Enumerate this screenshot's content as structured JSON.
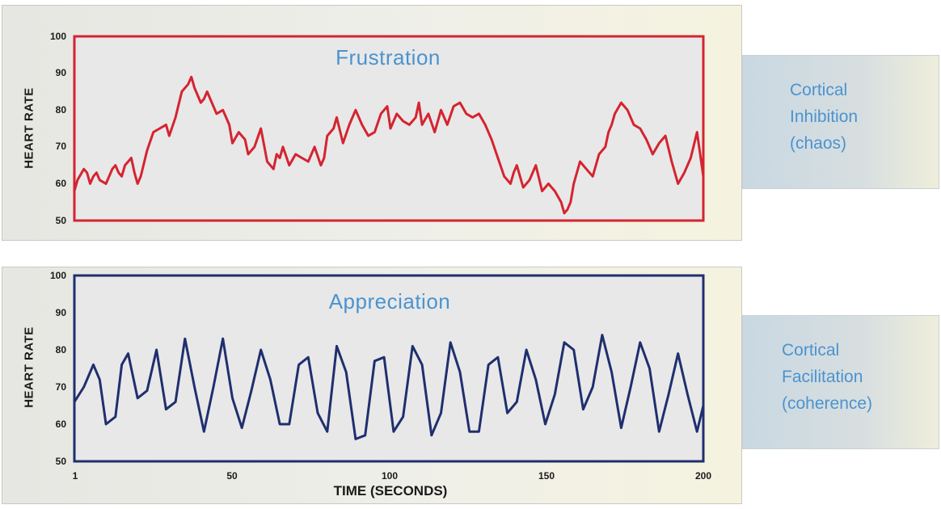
{
  "chart_data": [
    {
      "type": "line",
      "title": "Frustration",
      "ylabel": "HEART RATE",
      "xlabel": "",
      "ylim": [
        50,
        100
      ],
      "xlim": [
        1,
        200
      ],
      "yticks": [
        "100",
        "90",
        "80",
        "70",
        "60",
        "50"
      ],
      "color": "#d42430",
      "series": [
        {
          "x": [
            1,
            2,
            4,
            5,
            6,
            7,
            8,
            9,
            11,
            13,
            14,
            15,
            16,
            17,
            19,
            20,
            21,
            22,
            24,
            26,
            28,
            30,
            31,
            33,
            35,
            37,
            38,
            39,
            40,
            41,
            42,
            43,
            44,
            46,
            48,
            50,
            51,
            53,
            55,
            56,
            58,
            60,
            62,
            64,
            65,
            66,
            67,
            69,
            71,
            73,
            75,
            77,
            79,
            80,
            81,
            83,
            84,
            86,
            88,
            90,
            92,
            94,
            96,
            98,
            100,
            101,
            103,
            105,
            107,
            109,
            110,
            111,
            113,
            115,
            117,
            119,
            121,
            123,
            125,
            127,
            129,
            131,
            133,
            135,
            137,
            139,
            140,
            141,
            143,
            145,
            147,
            149,
            151,
            153,
            155,
            156,
            157,
            158,
            159,
            161,
            163,
            165,
            167,
            169,
            170,
            171,
            172,
            174,
            176,
            178,
            180,
            182,
            184,
            186,
            188,
            190,
            192,
            194,
            196,
            198,
            200
          ],
          "y": [
            58,
            61,
            64,
            63,
            60,
            62,
            63,
            61,
            60,
            64,
            65,
            63,
            62,
            65,
            67,
            63,
            60,
            62,
            69,
            74,
            75,
            76,
            73,
            78,
            85,
            87,
            89,
            86,
            84,
            82,
            83,
            85,
            83,
            79,
            80,
            76,
            71,
            74,
            72,
            68,
            70,
            75,
            66,
            64,
            68,
            67,
            70,
            65,
            68,
            67,
            66,
            70,
            65,
            67,
            73,
            75,
            78,
            71,
            76,
            80,
            76,
            73,
            74,
            79,
            81,
            75,
            79,
            77,
            76,
            78,
            82,
            76,
            79,
            74,
            80,
            76,
            81,
            82,
            79,
            78,
            79,
            76,
            72,
            67,
            62,
            60,
            63,
            65,
            59,
            61,
            65,
            58,
            60,
            58,
            55,
            52,
            53,
            55,
            60,
            66,
            64,
            62,
            68,
            70,
            74,
            76,
            79,
            82,
            80,
            76,
            75,
            72,
            68,
            71,
            73,
            66,
            60,
            63,
            67,
            74,
            62
          ]
        }
      ]
    },
    {
      "type": "line",
      "title": "Appreciation",
      "ylabel": "HEART RATE",
      "xlabel": "TIME (SECONDS)",
      "ylim": [
        50,
        100
      ],
      "xlim": [
        1,
        200
      ],
      "yticks": [
        "100",
        "90",
        "80",
        "70",
        "60",
        "50"
      ],
      "xticks": [
        1,
        50,
        100,
        150,
        200
      ],
      "xtick_labels": [
        "1",
        "50",
        "100",
        "150",
        "200"
      ],
      "color": "#1f2f6e",
      "series": [
        {
          "x": [
            1,
            4,
            7,
            9,
            11,
            14,
            16,
            18,
            21,
            24,
            27,
            30,
            33,
            36,
            39,
            42,
            45,
            48,
            51,
            54,
            57,
            60,
            63,
            66,
            69,
            72,
            75,
            78,
            81,
            84,
            87,
            90,
            93,
            96,
            99,
            102,
            105,
            108,
            111,
            114,
            117,
            120,
            123,
            126,
            129,
            132,
            135,
            138,
            141,
            144,
            147,
            150,
            153,
            156,
            159,
            162,
            165,
            168,
            171,
            174,
            177,
            180,
            183,
            186,
            189,
            192,
            195,
            198,
            200
          ],
          "y": [
            66,
            70,
            76,
            72,
            60,
            62,
            76,
            79,
            67,
            69,
            80,
            64,
            66,
            83,
            70,
            58,
            70,
            83,
            67,
            59,
            69,
            80,
            72,
            60,
            60,
            76,
            78,
            63,
            58,
            81,
            74,
            56,
            57,
            77,
            78,
            58,
            62,
            81,
            76,
            57,
            63,
            82,
            74,
            58,
            58,
            76,
            78,
            63,
            66,
            80,
            72,
            60,
            68,
            82,
            80,
            64,
            70,
            84,
            74,
            59,
            70,
            82,
            75,
            58,
            68,
            79,
            68,
            58,
            65
          ]
        }
      ]
    }
  ],
  "side_boxes": [
    {
      "lines": [
        "Cortical",
        "Inhibition",
        "(chaos)"
      ]
    },
    {
      "lines": [
        "Cortical",
        "Facilitation",
        "(coherence)"
      ]
    }
  ]
}
